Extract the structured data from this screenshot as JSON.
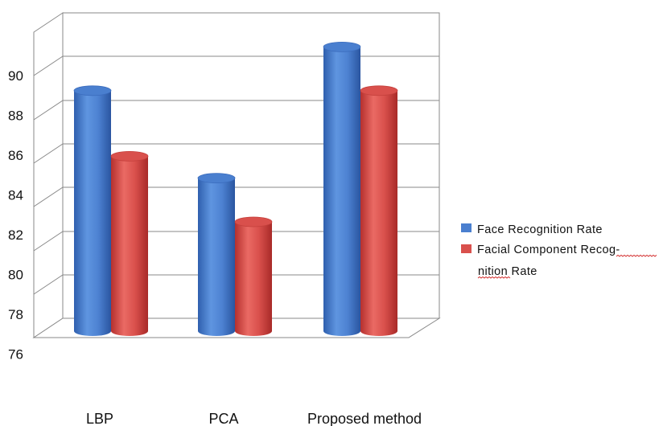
{
  "chart_data": {
    "type": "bar",
    "categories": [
      "LBP",
      "PCA",
      "Proposed method"
    ],
    "series": [
      {
        "name": "Face Recognition Rate",
        "values": [
          89,
          85,
          91
        ],
        "color": "#4a7fcf"
      },
      {
        "name": "Facial Component Recognition Rate",
        "values": [
          86,
          83,
          89
        ],
        "color": "#d9504c"
      }
    ],
    "legend_lines": [
      [
        "Face Recognition Rate"
      ],
      [
        "Facial Component",
        "Recog-"
      ],
      [
        "nition",
        "Rate"
      ]
    ],
    "y_tick_labels": [
      "90",
      "88",
      "86",
      "84",
      "82",
      "80",
      "78",
      "76"
    ],
    "bar_value_range": [
      78,
      92
    ],
    "title": "",
    "xlabel": "",
    "ylabel": "",
    "grid": true,
    "legend_position": "right",
    "style": "3d cylinder"
  }
}
